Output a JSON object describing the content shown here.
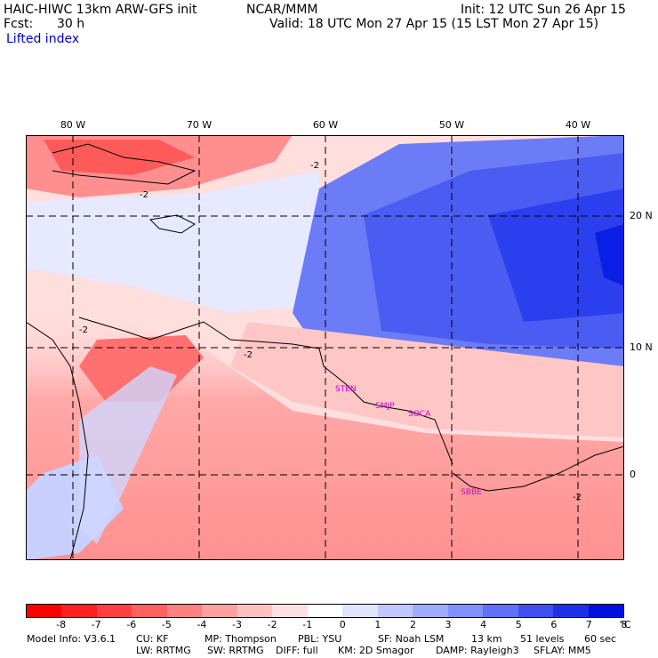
{
  "header": {
    "model_title": "HAIC-HIWC 13km ARW-GFS init",
    "org": "NCAR/MMM",
    "init": "Init: 12 UTC Sun 26 Apr 15",
    "fcst_label": "Fcst:",
    "fcst_value": "30 h",
    "valid": "Valid: 18 UTC Mon 27 Apr 15 (15 LST Mon 27 Apr 15)",
    "field": "Lifted index"
  },
  "map": {
    "longitude_labels": [
      "80 W",
      "70 W",
      "60 W",
      "50 W",
      "40 W"
    ],
    "latitude_labels": [
      "20 N",
      "10 N",
      "0"
    ],
    "contour_labels": [
      "-2",
      "-2",
      "-2",
      "-2",
      "-2"
    ],
    "stations": [
      "STEN",
      "SMJP",
      "SOCA",
      "SBBE"
    ]
  },
  "legend": {
    "colors": [
      "#ff0000",
      "#ff2020",
      "#ff4040",
      "#ff6060",
      "#ff8080",
      "#ffa0a0",
      "#ffc0c0",
      "#ffe0e0",
      "#ffffff",
      "#e0e4ff",
      "#c0c8ff",
      "#a0acff",
      "#8090ff",
      "#6070f8",
      "#4050f0",
      "#2030e8",
      "#0010e0"
    ],
    "ticks": [
      "-8",
      "-7",
      "-6",
      "-5",
      "-4",
      "-3",
      "-2",
      "-1",
      "0",
      "1",
      "2",
      "3",
      "4",
      "5",
      "6",
      "7",
      "8"
    ],
    "unit": "°C"
  },
  "footer": {
    "line1": [
      "Model Info: V3.6.1",
      "CU: KF",
      "MP: Thompson",
      "PBL: YSU",
      "SF: Noah LSM",
      "13 km",
      "51 levels",
      "60 sec"
    ],
    "line2": [
      "LW: RRTMG",
      "SW: RRTMG",
      "DIFF: full",
      "KM: 2D Smagor",
      "DAMP: Rayleigh3",
      "SFLAY: MM5"
    ]
  }
}
